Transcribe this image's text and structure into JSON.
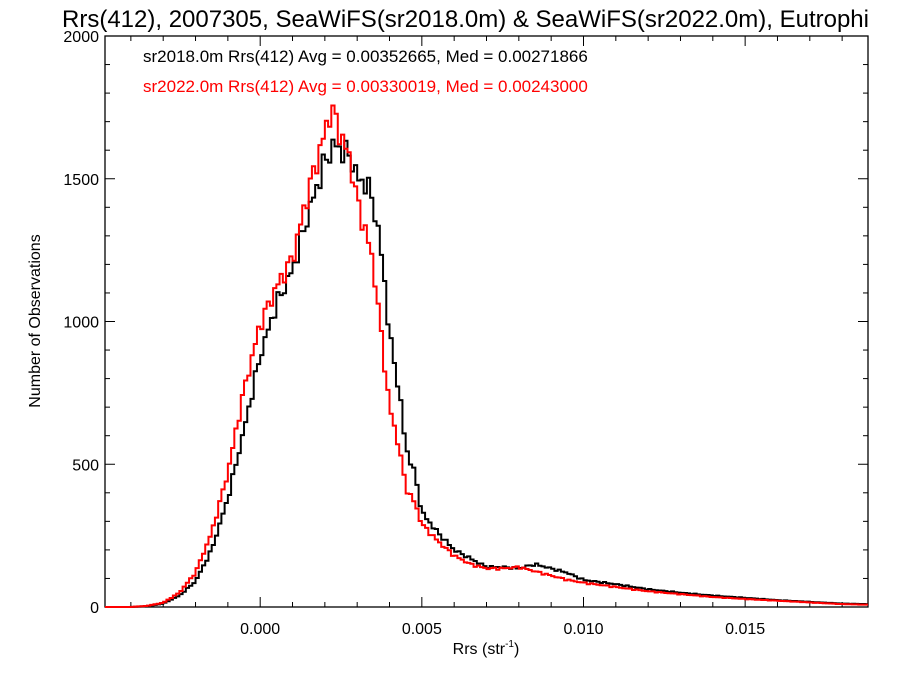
{
  "chart_data": {
    "type": "line",
    "step": true,
    "title": "Rrs(412), 2007305, SeaWiFS(sr2018.0m) & SeaWiFS(sr2022.0m), Eutrophi",
    "xlabel": "Rrs (str",
    "xlabel_sup": "-1",
    "xlabel_end": ")",
    "ylabel": "Number of Observations",
    "xlim": [
      -0.0048,
      0.0188
    ],
    "ylim": [
      0,
      2000
    ],
    "xticks": [
      0.0,
      0.005,
      0.01,
      0.015
    ],
    "xtick_labels": [
      "0.000",
      "0.005",
      "0.010",
      "0.015"
    ],
    "yticks": [
      0,
      500,
      1000,
      1500,
      2000
    ],
    "ytick_labels": [
      "0",
      "500",
      "1000",
      "1500",
      "2000"
    ],
    "grid": false,
    "legend": [
      {
        "text": "sr2018.0m Rrs(412) Avg = 0.00352665, Med = 0.00271866",
        "color": "#000000"
      },
      {
        "text": "sr2022.0m Rrs(412) Avg = 0.00330019, Med = 0.00243000",
        "color": "#ff0000"
      }
    ],
    "series": [
      {
        "name": "sr2018.0m",
        "color": "#000000",
        "points": [
          [
            -0.0048,
            0
          ],
          [
            -0.004,
            0
          ],
          [
            -0.0035,
            3
          ],
          [
            -0.003,
            12
          ],
          [
            -0.0025,
            40
          ],
          [
            -0.002,
            90
          ],
          [
            -0.0015,
            200
          ],
          [
            -0.001,
            380
          ],
          [
            -0.0005,
            620
          ],
          [
            0.0,
            880
          ],
          [
            0.0005,
            1060
          ],
          [
            0.001,
            1180
          ],
          [
            0.0015,
            1380
          ],
          [
            0.002,
            1560
          ],
          [
            0.0023,
            1620
          ],
          [
            0.0025,
            1600
          ],
          [
            0.0028,
            1580
          ],
          [
            0.003,
            1500
          ],
          [
            0.0033,
            1480
          ],
          [
            0.0035,
            1420
          ],
          [
            0.0038,
            1200
          ],
          [
            0.004,
            950
          ],
          [
            0.0043,
            760
          ],
          [
            0.0045,
            560
          ],
          [
            0.0048,
            460
          ],
          [
            0.005,
            330
          ],
          [
            0.0055,
            260
          ],
          [
            0.006,
            200
          ],
          [
            0.0065,
            170
          ],
          [
            0.007,
            140
          ],
          [
            0.0075,
            140
          ],
          [
            0.008,
            135
          ],
          [
            0.0085,
            150
          ],
          [
            0.009,
            135
          ],
          [
            0.0095,
            120
          ],
          [
            0.01,
            95
          ],
          [
            0.011,
            80
          ],
          [
            0.012,
            62
          ],
          [
            0.013,
            50
          ],
          [
            0.014,
            40
          ],
          [
            0.015,
            32
          ],
          [
            0.016,
            24
          ],
          [
            0.017,
            18
          ],
          [
            0.018,
            12
          ],
          [
            0.0188,
            10
          ]
        ]
      },
      {
        "name": "sr2022.0m",
        "color": "#ff0000",
        "points": [
          [
            -0.0048,
            0
          ],
          [
            -0.004,
            0
          ],
          [
            -0.0035,
            4
          ],
          [
            -0.003,
            15
          ],
          [
            -0.0025,
            50
          ],
          [
            -0.002,
            120
          ],
          [
            -0.0015,
            260
          ],
          [
            -0.001,
            470
          ],
          [
            -0.0005,
            760
          ],
          [
            0.0,
            990
          ],
          [
            0.0005,
            1120
          ],
          [
            0.001,
            1220
          ],
          [
            0.0015,
            1460
          ],
          [
            0.002,
            1660
          ],
          [
            0.0022,
            1750
          ],
          [
            0.0025,
            1650
          ],
          [
            0.0028,
            1560
          ],
          [
            0.003,
            1420
          ],
          [
            0.0033,
            1300
          ],
          [
            0.0035,
            1200
          ],
          [
            0.0038,
            900
          ],
          [
            0.004,
            700
          ],
          [
            0.0043,
            560
          ],
          [
            0.0045,
            420
          ],
          [
            0.0048,
            360
          ],
          [
            0.005,
            290
          ],
          [
            0.0055,
            230
          ],
          [
            0.006,
            180
          ],
          [
            0.0065,
            150
          ],
          [
            0.007,
            135
          ],
          [
            0.0075,
            135
          ],
          [
            0.008,
            140
          ],
          [
            0.0085,
            125
          ],
          [
            0.009,
            110
          ],
          [
            0.0095,
            95
          ],
          [
            0.01,
            85
          ],
          [
            0.011,
            70
          ],
          [
            0.012,
            55
          ],
          [
            0.013,
            45
          ],
          [
            0.014,
            35
          ],
          [
            0.015,
            28
          ],
          [
            0.016,
            22
          ],
          [
            0.017,
            16
          ],
          [
            0.018,
            10
          ],
          [
            0.0188,
            8
          ]
        ]
      }
    ]
  }
}
